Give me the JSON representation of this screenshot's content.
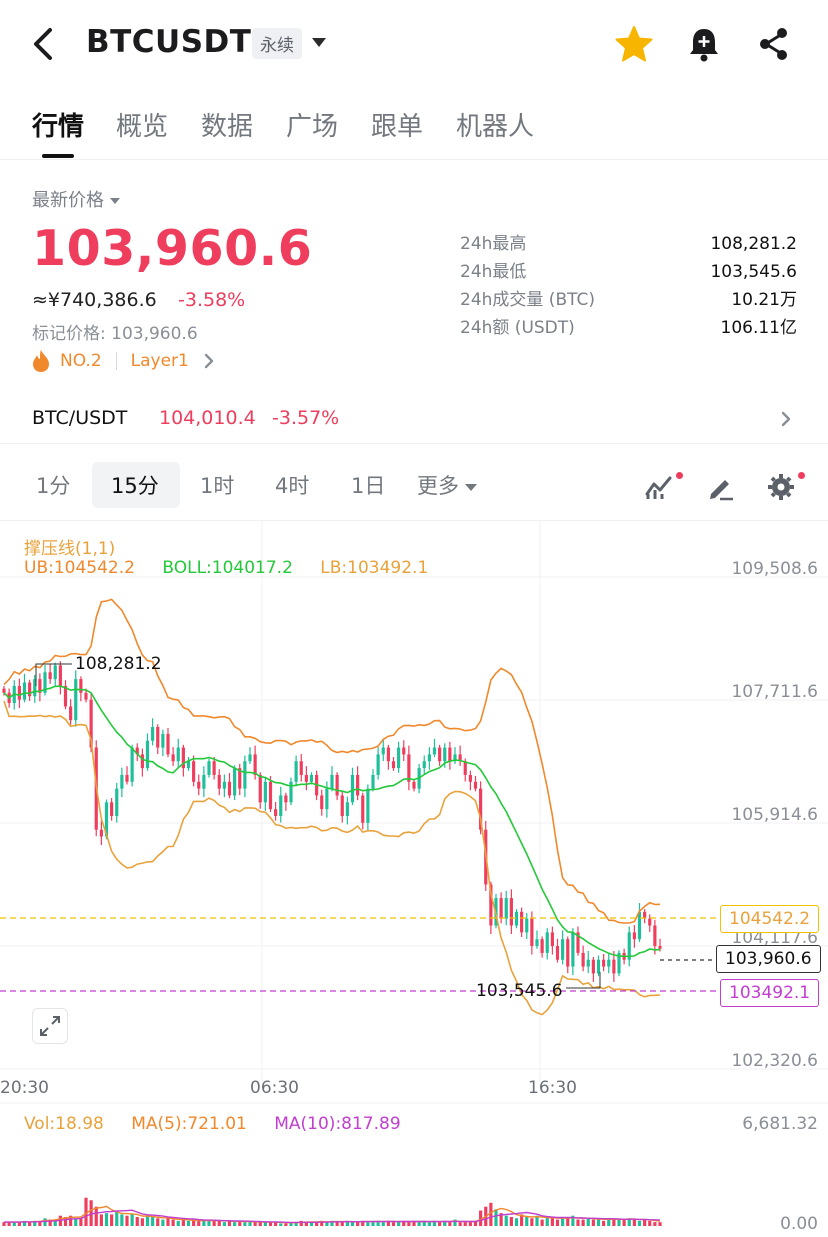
{
  "header": {
    "symbol": "BTCUSDT",
    "badge": "永续",
    "icons": [
      "back-arrow-icon",
      "star-icon",
      "bell-plus-icon",
      "share-icon"
    ],
    "star_color": "#f7b500"
  },
  "tabs": [
    "行情",
    "概览",
    "数据",
    "广场",
    "跟单",
    "机器人"
  ],
  "ticker": {
    "latest_label": "最新价格",
    "price": "103,960.6",
    "cny": "≈¥740,386.6",
    "change": "-3.58%",
    "mark": "标记价格: 103,960.6",
    "rank": "NO.2",
    "tag": "Layer1",
    "stats": [
      {
        "k": "24h最高",
        "v": "108,281.2"
      },
      {
        "k": "24h最低",
        "v": "103,545.6"
      },
      {
        "k": "24h成交量 (BTC)",
        "v": "10.21万"
      },
      {
        "k": "24h额 (USDT)",
        "v": "106.11亿"
      }
    ],
    "down_color": "#ef3d5d",
    "up_color": "#1fbf9a"
  },
  "pair": {
    "name": "BTC/USDT",
    "price": "104,010.4",
    "change": "-3.57%"
  },
  "intervals": {
    "items": [
      "1分",
      "15分",
      "1时",
      "4时",
      "1日"
    ],
    "more": "更多",
    "selected": "15分"
  },
  "indicator": {
    "title": "撑压线(1,1)",
    "ub": "UB:104542.2",
    "boll": "BOLL:104017.2",
    "lb": "LB:103492.1"
  },
  "price_axis": [
    "109,508.6",
    "107,711.6",
    "105,914.6",
    "104,117.6",
    "102,320.6"
  ],
  "time_axis": [
    "20:30",
    "06:30",
    "16:30"
  ],
  "tags": {
    "ub": "104542.2",
    "current": "103,960.6",
    "lb": "103492.1",
    "high": "108,281.2",
    "low": "103,545.6"
  },
  "volume": {
    "vol": "Vol:18.98",
    "ma5": "MA(5):721.01",
    "ma10": "MA(10):817.89",
    "axis_max": "6,681.32",
    "axis_min": "0.00"
  },
  "chart_data": {
    "type": "candlestick",
    "ylim": [
      102320.6,
      109508.6
    ],
    "close": [
      107700,
      107550,
      107800,
      107600,
      107850,
      107650,
      107900,
      107700,
      108000,
      107900,
      108100,
      107800,
      107500,
      107300,
      107900,
      107700,
      107600,
      106900,
      105700,
      105600,
      106100,
      105900,
      106300,
      106500,
      106400,
      106900,
      106800,
      106600,
      107000,
      107200,
      106900,
      107100,
      106800,
      106700,
      106900,
      106600,
      106700,
      106400,
      106300,
      106500,
      106700,
      106500,
      106300,
      106400,
      106200,
      106600,
      106300,
      106700,
      106800,
      106500,
      106100,
      106400,
      106000,
      105900,
      106200,
      106100,
      106400,
      106700,
      106500,
      106400,
      106500,
      106200,
      106000,
      106300,
      106500,
      106200,
      105900,
      106100,
      106500,
      106200,
      105800,
      106300,
      106500,
      106800,
      106900,
      106700,
      106600,
      106900,
      106800,
      106400,
      106300,
      106600,
      106700,
      106800,
      106900,
      106700,
      106900,
      106700,
      106800,
      106700,
      106500,
      106400,
      106300,
      105700,
      104900,
      104300,
      104700,
      104400,
      104700,
      104300,
      104500,
      104200,
      104400,
      104000,
      104100,
      103900,
      104200,
      104000,
      103800,
      104100,
      103700,
      104200,
      103900,
      103700,
      103800,
      103600,
      103800,
      103700,
      103800,
      103600,
      103900,
      103800,
      104200,
      104100,
      104500,
      104400,
      104300,
      104000,
      103960.6
    ],
    "volume": [
      300,
      300,
      300,
      300,
      400,
      300,
      400,
      400,
      600,
      500,
      500,
      800,
      700,
      800,
      600,
      600,
      2200,
      2000,
      1500,
      900,
      1000,
      900,
      1200,
      900,
      800,
      900,
      700,
      600,
      800,
      700,
      600,
      500,
      600,
      500,
      400,
      500,
      400,
      400,
      400,
      400,
      500,
      400,
      400,
      300,
      400,
      300,
      400,
      300,
      300,
      300,
      300,
      300,
      300,
      300,
      200,
      200,
      300,
      300,
      400,
      300,
      300,
      300,
      400,
      300,
      400,
      300,
      300,
      400,
      300,
      300,
      400,
      300,
      400,
      400,
      300,
      400,
      300,
      300,
      400,
      300,
      400,
      300,
      400,
      300,
      400,
      300,
      400,
      300,
      500,
      300,
      300,
      300,
      400,
      1200,
      1500,
      1800,
      1300,
      1000,
      800,
      700,
      600,
      900,
      700,
      600,
      800,
      500,
      700,
      600,
      500,
      700,
      600,
      800,
      500,
      500,
      600,
      500,
      600,
      400,
      500,
      600,
      500,
      500,
      600,
      500,
      400,
      500,
      400,
      300,
      300
    ]
  }
}
